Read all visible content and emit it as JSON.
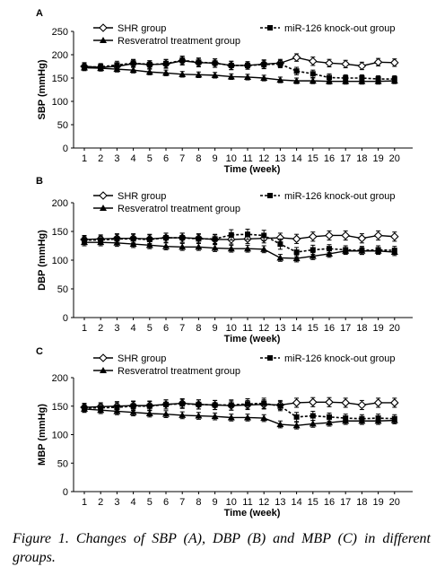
{
  "caption": {
    "label": "Figure 1.",
    "text": " Changes of SBP (A), DBP (B) and MBP (C) in different groups."
  },
  "chart_data": [
    {
      "type": "line",
      "panel_label": "A",
      "ylabel": "SBP (mmHg)",
      "xlabel": "Time (week)",
      "ylim": [
        0,
        250
      ],
      "yticks": [
        0,
        50,
        100,
        150,
        200,
        250
      ],
      "x": [
        1,
        2,
        3,
        4,
        5,
        6,
        7,
        8,
        9,
        10,
        11,
        12,
        13,
        14,
        15,
        16,
        17,
        18,
        19,
        20
      ],
      "series": [
        {
          "name": "SHR group",
          "marker": "diamond-open",
          "dash": false,
          "values": [
            175,
            173,
            175,
            181,
            179,
            180,
            187,
            183,
            182,
            177,
            177,
            180,
            182,
            194,
            186,
            182,
            180,
            176,
            184,
            183
          ],
          "err": [
            8,
            7,
            8,
            8,
            8,
            9,
            9,
            9,
            9,
            9,
            8,
            9,
            8,
            8,
            9,
            8,
            8,
            8,
            8,
            8
          ]
        },
        {
          "name": "miR-126 knock-out group",
          "marker": "square",
          "dash": true,
          "values": [
            174,
            174,
            178,
            182,
            179,
            181,
            188,
            184,
            182,
            177,
            177,
            179,
            180,
            165,
            159,
            151,
            150,
            150,
            148,
            148
          ],
          "err": [
            8,
            7,
            8,
            8,
            8,
            9,
            9,
            9,
            9,
            9,
            8,
            9,
            8,
            8,
            8,
            8,
            7,
            7,
            7,
            7
          ]
        },
        {
          "name": "Resveratrol treatment group",
          "marker": "triangle",
          "dash": false,
          "values": [
            172,
            171,
            169,
            167,
            163,
            161,
            158,
            157,
            156,
            153,
            152,
            150,
            146,
            144,
            144,
            143,
            143,
            143,
            143,
            144
          ],
          "err": [
            6,
            6,
            6,
            6,
            6,
            6,
            6,
            6,
            6,
            6,
            6,
            6,
            6,
            6,
            6,
            6,
            6,
            6,
            6,
            6
          ]
        }
      ]
    },
    {
      "type": "line",
      "panel_label": "B",
      "ylabel": "DBP (mmHg)",
      "xlabel": "Time (week)",
      "ylim": [
        0,
        200
      ],
      "yticks": [
        0,
        50,
        100,
        150,
        200
      ],
      "x": [
        1,
        2,
        3,
        4,
        5,
        6,
        7,
        8,
        9,
        10,
        11,
        12,
        13,
        14,
        15,
        16,
        17,
        18,
        19,
        20
      ],
      "series": [
        {
          "name": "SHR group",
          "marker": "diamond-open",
          "dash": false,
          "values": [
            136,
            137,
            138,
            138,
            137,
            139,
            139,
            138,
            136,
            136,
            137,
            138,
            139,
            137,
            141,
            143,
            143,
            138,
            143,
            141
          ],
          "err": [
            7,
            7,
            8,
            8,
            8,
            8,
            8,
            8,
            8,
            8,
            8,
            8,
            8,
            8,
            8,
            8,
            8,
            8,
            8,
            8
          ]
        },
        {
          "name": "miR-126 knock-out group",
          "marker": "square",
          "dash": true,
          "values": [
            135,
            135,
            137,
            137,
            136,
            139,
            139,
            137,
            137,
            144,
            145,
            143,
            128,
            114,
            118,
            120,
            118,
            117,
            118,
            117
          ],
          "err": [
            7,
            7,
            8,
            8,
            8,
            8,
            8,
            8,
            8,
            9,
            9,
            9,
            9,
            8,
            8,
            7,
            7,
            7,
            7,
            7
          ]
        },
        {
          "name": "Resveratrol treatment group",
          "marker": "triangle",
          "dash": false,
          "values": [
            131,
            131,
            130,
            128,
            126,
            124,
            123,
            123,
            121,
            120,
            120,
            119,
            104,
            103,
            107,
            111,
            116,
            116,
            116,
            114
          ],
          "err": [
            6,
            6,
            6,
            6,
            6,
            6,
            6,
            6,
            6,
            6,
            6,
            6,
            6,
            6,
            6,
            6,
            6,
            6,
            6,
            6
          ]
        }
      ]
    },
    {
      "type": "line",
      "panel_label": "C",
      "ylabel": "MBP (mmHg)",
      "xlabel": "Time (week)",
      "ylim": [
        0,
        200
      ],
      "yticks": [
        0,
        50,
        100,
        150,
        200
      ],
      "x": [
        1,
        2,
        3,
        4,
        5,
        6,
        7,
        8,
        9,
        10,
        11,
        12,
        13,
        14,
        15,
        16,
        17,
        18,
        19,
        20
      ],
      "series": [
        {
          "name": "SHR group",
          "marker": "diamond-open",
          "dash": false,
          "values": [
            148,
            149,
            150,
            151,
            151,
            153,
            155,
            153,
            152,
            151,
            152,
            153,
            152,
            156,
            157,
            157,
            156,
            152,
            156,
            156
          ],
          "err": [
            7,
            7,
            8,
            8,
            8,
            8,
            8,
            8,
            8,
            8,
            8,
            8,
            8,
            8,
            8,
            8,
            8,
            8,
            8,
            8
          ]
        },
        {
          "name": "miR-126 knock-out group",
          "marker": "square",
          "dash": true,
          "values": [
            147,
            147,
            148,
            150,
            150,
            153,
            154,
            153,
            152,
            152,
            154,
            155,
            150,
            131,
            133,
            131,
            129,
            128,
            129,
            128
          ],
          "err": [
            7,
            7,
            8,
            8,
            8,
            8,
            8,
            8,
            8,
            9,
            9,
            9,
            8,
            8,
            8,
            7,
            7,
            7,
            7,
            7
          ]
        },
        {
          "name": "Resveratrol treatment group",
          "marker": "triangle",
          "dash": false,
          "values": [
            145,
            143,
            141,
            139,
            137,
            136,
            134,
            133,
            132,
            130,
            130,
            129,
            118,
            116,
            119,
            121,
            124,
            124,
            124,
            125
          ],
          "err": [
            6,
            6,
            6,
            6,
            6,
            6,
            6,
            6,
            6,
            6,
            6,
            6,
            6,
            6,
            6,
            6,
            6,
            6,
            6,
            6
          ]
        }
      ]
    }
  ]
}
